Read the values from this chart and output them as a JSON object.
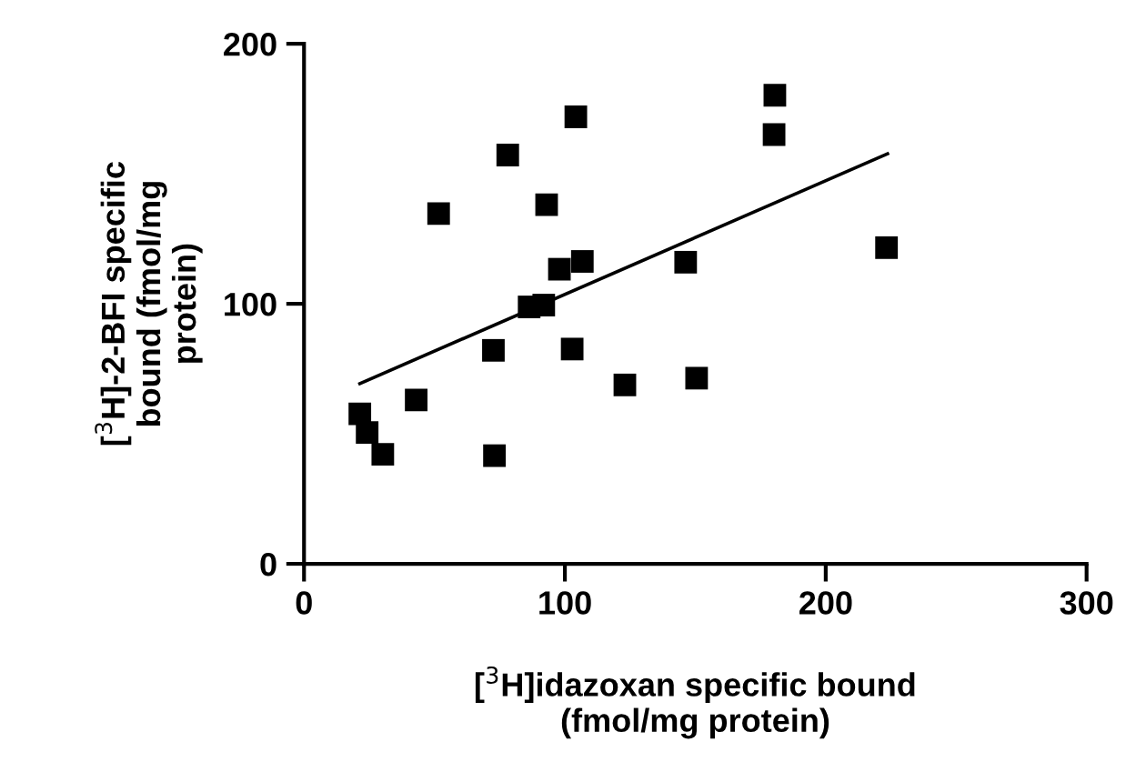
{
  "chart_data": {
    "type": "scatter",
    "xlabel": "[$^{3}$H]idazoxan specific bound\n(fmol/mg protein)",
    "ylabel": "[$^{3}$H]-2-BFI specific\nbound (fmol/mg\nprotein)",
    "xlim": [
      0,
      300
    ],
    "xticks": [
      0,
      100,
      200,
      300
    ],
    "ylim": [
      0,
      200
    ],
    "yticks": [
      0,
      100,
      200
    ],
    "grid": false,
    "marker": "square",
    "legend": false,
    "series": [
      {
        "color": "#000000",
        "x": [
          21.4,
          24.2,
          30.2,
          43.0,
          51.6,
          72.6,
          73.0,
          78.1,
          86.3,
          91.9,
          93.0,
          97.9,
          104.2,
          102.8,
          106.7,
          123.0,
          146.3,
          150.5,
          180.5,
          180.2,
          223.3
        ],
        "values": [
          57.7,
          50.5,
          42.1,
          63.0,
          134.7,
          82.1,
          41.6,
          157.2,
          98.8,
          99.5,
          138.1,
          113.3,
          171.9,
          82.6,
          116.3,
          68.8,
          116.0,
          71.4,
          180.2,
          165.1,
          121.6
        ]
      },
      {
        "type": "line",
        "color": "#000000",
        "marker": "none",
        "line_style": "solid",
        "x": [
          21.4,
          223.7
        ],
        "values": [
          69.3,
          157.7
        ]
      }
    ]
  }
}
